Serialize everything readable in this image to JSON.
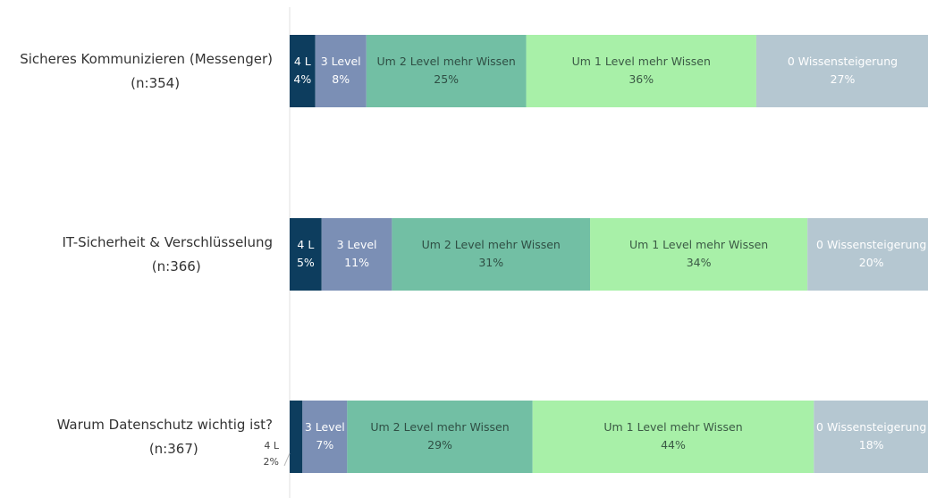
{
  "chart_data": {
    "type": "stacked-bar-horizontal",
    "categories": [
      "Sicheres Kommunizieren (Messenger)",
      "IT-Sicherheit & Verschlüsselung",
      "Warum Datenschutz wichtig ist?"
    ],
    "category_notes": [
      "(n:354)",
      "(n:366)",
      "(n:367)"
    ],
    "series": [
      {
        "name": "4 L",
        "color": "#0d3d5e",
        "text_color": "#ffffff",
        "values": [
          4,
          5,
          2
        ],
        "value_labels": [
          "4%",
          "5%",
          "2%"
        ]
      },
      {
        "name": "3 Level",
        "color": "#7b8fb5",
        "text_color": "#ffffff",
        "values": [
          8,
          11,
          7
        ],
        "value_labels": [
          "8%",
          "11%",
          "7%"
        ]
      },
      {
        "name": "Um 2 Level mehr Wissen",
        "color": "#72bfa4",
        "text_color": "#2f4f44",
        "values": [
          25,
          31,
          29
        ],
        "value_labels": [
          "25%",
          "31%",
          "29%"
        ]
      },
      {
        "name": "Um 1 Level mehr Wissen",
        "color": "#a8f0a8",
        "text_color": "#3b5a45",
        "values": [
          36,
          34,
          44
        ],
        "value_labels": [
          "36%",
          "34%",
          "44%"
        ]
      },
      {
        "name": "0 Wissensteigerung",
        "color": "#b5c7d1",
        "text_color": "#ffffff",
        "values": [
          27,
          20,
          18
        ],
        "value_labels": [
          "27%",
          "20%",
          "18%"
        ]
      }
    ]
  }
}
